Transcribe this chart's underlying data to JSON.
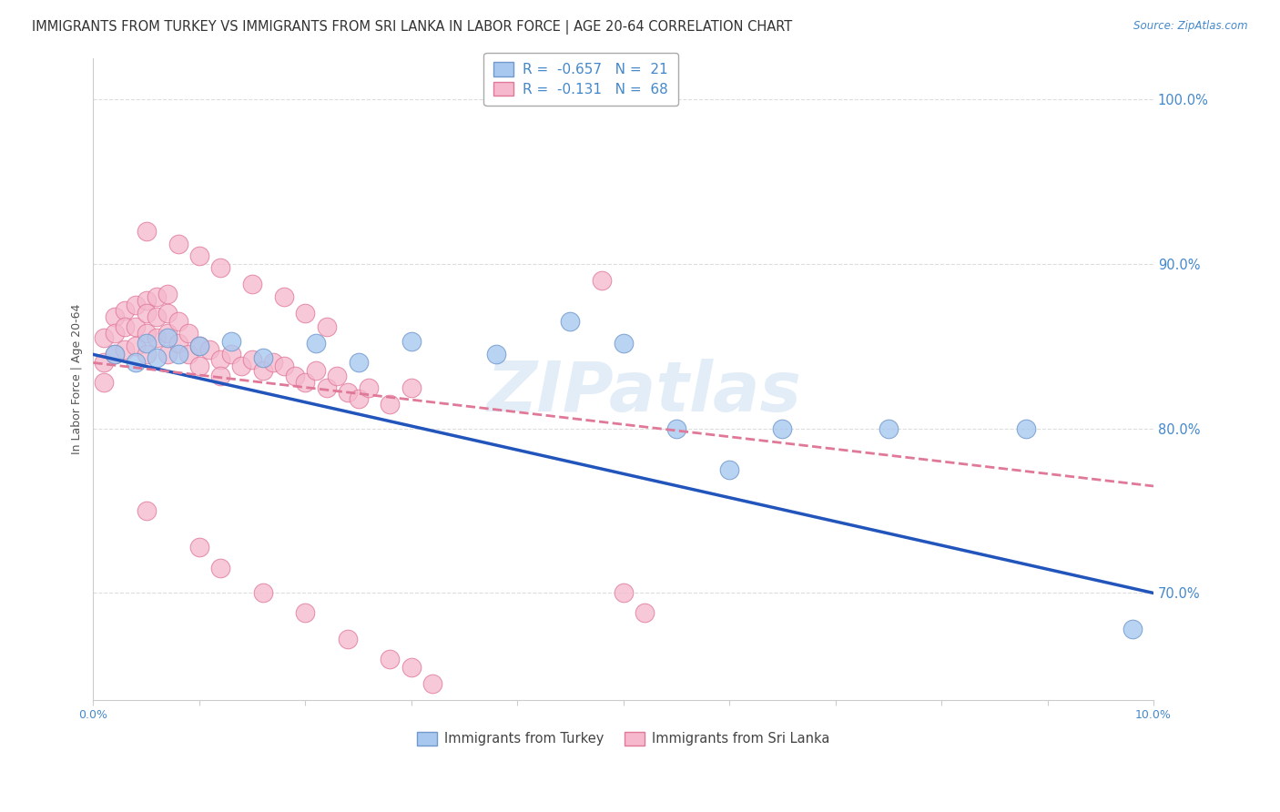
{
  "title": "IMMIGRANTS FROM TURKEY VS IMMIGRANTS FROM SRI LANKA IN LABOR FORCE | AGE 20-64 CORRELATION CHART",
  "source": "Source: ZipAtlas.com",
  "ylabel": "In Labor Force | Age 20-64",
  "xmin": 0.0,
  "xmax": 0.1,
  "ymin": 0.635,
  "ymax": 1.025,
  "turkey_color": "#a8c8f0",
  "srilanka_color": "#f5b8cc",
  "turkey_edge": "#7099cc",
  "srilanka_edge": "#e07898",
  "regression_turkey_color": "#2255bb",
  "regression_srilanka_color": "#e07898",
  "right_yticks": [
    1.0,
    0.9,
    0.8,
    0.7
  ],
  "right_ytick_labels": [
    "100.0%",
    "90.0%",
    "80.0%",
    "70.0%"
  ],
  "legend_r_turkey": "-0.657",
  "legend_n_turkey": "21",
  "legend_r_srilanka": "-0.131",
  "legend_n_srilanka": "68",
  "turkey_x": [
    0.002,
    0.004,
    0.005,
    0.006,
    0.007,
    0.008,
    0.01,
    0.013,
    0.016,
    0.021,
    0.025,
    0.03,
    0.038,
    0.045,
    0.05,
    0.055,
    0.06,
    0.065,
    0.075,
    0.088,
    0.098
  ],
  "turkey_y": [
    0.845,
    0.84,
    0.852,
    0.843,
    0.855,
    0.845,
    0.85,
    0.853,
    0.843,
    0.852,
    0.84,
    0.853,
    0.845,
    0.865,
    0.852,
    0.8,
    0.775,
    0.8,
    0.8,
    0.8,
    0.678
  ],
  "srilanka_x": [
    0.001,
    0.001,
    0.001,
    0.002,
    0.002,
    0.002,
    0.003,
    0.003,
    0.003,
    0.004,
    0.004,
    0.004,
    0.005,
    0.005,
    0.005,
    0.005,
    0.006,
    0.006,
    0.006,
    0.007,
    0.007,
    0.007,
    0.007,
    0.008,
    0.008,
    0.009,
    0.009,
    0.01,
    0.01,
    0.011,
    0.012,
    0.012,
    0.013,
    0.014,
    0.015,
    0.016,
    0.017,
    0.018,
    0.019,
    0.02,
    0.021,
    0.022,
    0.023,
    0.024,
    0.025,
    0.026,
    0.028,
    0.03,
    0.005,
    0.008,
    0.01,
    0.012,
    0.015,
    0.018,
    0.02,
    0.022,
    0.048,
    0.005,
    0.01,
    0.012,
    0.016,
    0.02,
    0.024,
    0.028,
    0.03,
    0.032,
    0.05,
    0.052
  ],
  "srilanka_y": [
    0.855,
    0.84,
    0.828,
    0.868,
    0.858,
    0.845,
    0.872,
    0.862,
    0.848,
    0.875,
    0.862,
    0.85,
    0.878,
    0.87,
    0.858,
    0.845,
    0.88,
    0.868,
    0.855,
    0.882,
    0.87,
    0.858,
    0.845,
    0.865,
    0.852,
    0.858,
    0.845,
    0.85,
    0.838,
    0.848,
    0.842,
    0.832,
    0.845,
    0.838,
    0.842,
    0.835,
    0.84,
    0.838,
    0.832,
    0.828,
    0.835,
    0.825,
    0.832,
    0.822,
    0.818,
    0.825,
    0.815,
    0.825,
    0.92,
    0.912,
    0.905,
    0.898,
    0.888,
    0.88,
    0.87,
    0.862,
    0.89,
    0.75,
    0.728,
    0.715,
    0.7,
    0.688,
    0.672,
    0.66,
    0.655,
    0.645,
    0.7,
    0.688
  ],
  "watermark": "ZIPatlas",
  "background_color": "#ffffff",
  "grid_color": "#dddddd",
  "axis_color": "#4488cc",
  "title_color": "#333333",
  "source_color": "#4488cc",
  "title_fontsize": 10.5,
  "label_fontsize": 9,
  "tick_fontsize": 9
}
